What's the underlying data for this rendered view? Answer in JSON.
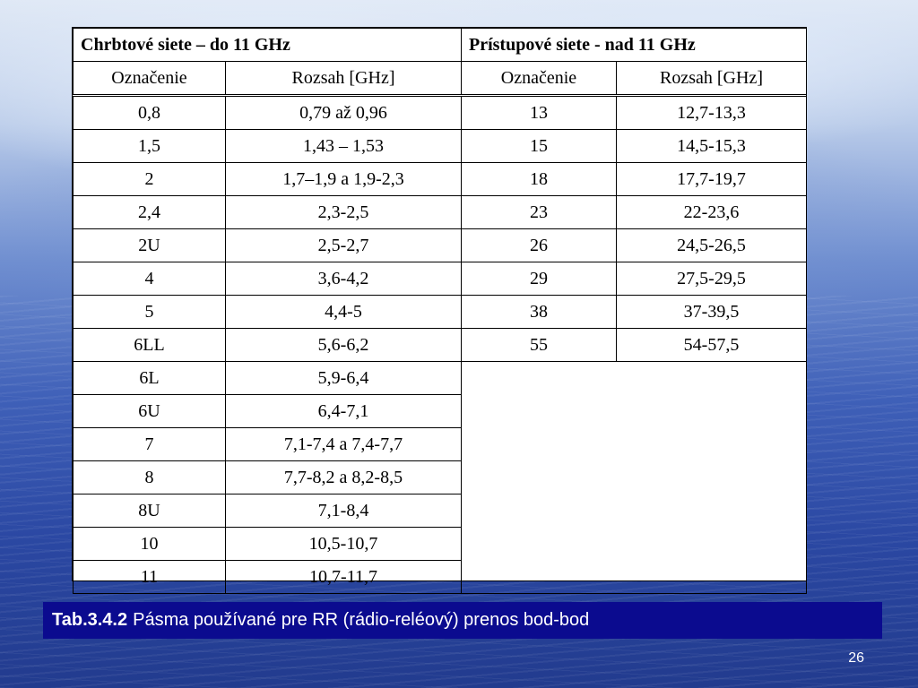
{
  "table": {
    "group_left": "Chrbtové siete – do 11 GHz",
    "group_right": "Prístupové siete - nad 11 GHz",
    "col_label": "Označenie",
    "col_range": "Rozsah [GHz]",
    "rows": [
      {
        "l_label": "0,8",
        "l_range": "0,79 až 0,96",
        "r_label": "13",
        "r_range": "12,7-13,3"
      },
      {
        "l_label": "1,5",
        "l_range": "1,43 – 1,53",
        "r_label": "15",
        "r_range": "14,5-15,3"
      },
      {
        "l_label": "2",
        "l_range": "1,7–1,9 a 1,9-2,3",
        "r_label": "18",
        "r_range": "17,7-19,7"
      },
      {
        "l_label": "2,4",
        "l_range": "2,3-2,5",
        "r_label": "23",
        "r_range": "22-23,6"
      },
      {
        "l_label": "2U",
        "l_range": "2,5-2,7",
        "r_label": "26",
        "r_range": "24,5-26,5"
      },
      {
        "l_label": "4",
        "l_range": "3,6-4,2",
        "r_label": "29",
        "r_range": "27,5-29,5"
      },
      {
        "l_label": "5",
        "l_range": "4,4-5",
        "r_label": "38",
        "r_range": "37-39,5"
      },
      {
        "l_label": "6LL",
        "l_range": "5,6-6,2",
        "r_label": "55",
        "r_range": "54-57,5"
      },
      {
        "l_label": "6L",
        "l_range": "5,9-6,4"
      },
      {
        "l_label": "6U",
        "l_range": "6,4-7,1"
      },
      {
        "l_label": "7",
        "l_range": "7,1-7,4 a 7,4-7,7"
      },
      {
        "l_label": "8",
        "l_range": "7,7-8,2 a 8,2-8,5"
      },
      {
        "l_label": "8U",
        "l_range": "7,1-8,4"
      },
      {
        "l_label": "10",
        "l_range": "10,5-10,7"
      },
      {
        "l_label": "11",
        "l_range": "10,7-11,7"
      }
    ]
  },
  "caption": {
    "label": "Tab.3.4.2",
    "text": "Pásma používané pre RR (rádio-reléový) prenos bod-bod"
  },
  "page_number": "26"
}
